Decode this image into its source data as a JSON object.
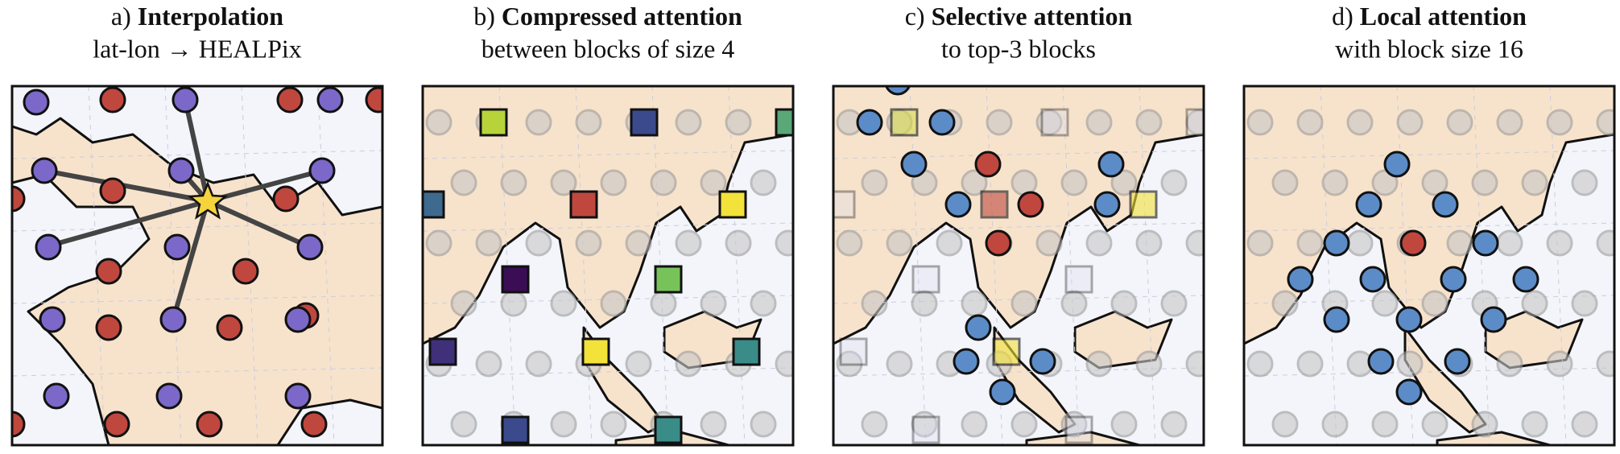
{
  "panels": [
    {
      "prefix": "a)",
      "title": "Interpolation",
      "subtitle": "lat-lon → HEALPix"
    },
    {
      "prefix": "b)",
      "title": "Compressed attention",
      "subtitle": "between blocks of size 4"
    },
    {
      "prefix": "c)",
      "title": "Selective attention",
      "subtitle": "to top-3 blocks"
    },
    {
      "prefix": "d)",
      "title": "Local attention",
      "subtitle": "with block size 16"
    }
  ]
}
